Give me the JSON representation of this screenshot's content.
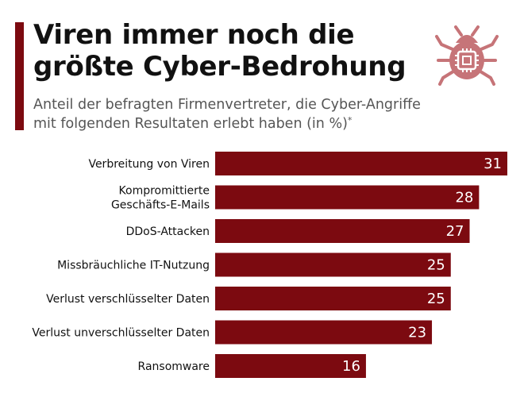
{
  "header": {
    "title_line1": "Viren immer noch die",
    "title_line2": "größte Cyber-Bedrohung",
    "subtitle_line1": "Anteil der befragten Firmenvertreter, die Cyber-Angriffe",
    "subtitle_line2": "mit folgenden Resultaten erlebt haben (in %)",
    "subtitle_mark": "*",
    "icon": "bug-chip-icon"
  },
  "colors": {
    "bar": "#7c0a10",
    "accent": "#7c0a10",
    "icon": "#c67478"
  },
  "chart_data": {
    "type": "bar",
    "orientation": "horizontal",
    "categories": [
      [
        "Verbreitung von Viren"
      ],
      [
        "Kompromittierte",
        "Geschäfts-E-Mails"
      ],
      [
        "DDoS-Attacken"
      ],
      [
        "Missbräuchliche IT-Nutzung"
      ],
      [
        "Verlust verschlüsselter Daten"
      ],
      [
        "Verlust unverschlüsselter Daten"
      ],
      [
        "Ransomware"
      ]
    ],
    "values": [
      31,
      28,
      27,
      25,
      25,
      23,
      16
    ],
    "xlim": [
      0,
      31
    ],
    "grid": false,
    "data_labels": true
  }
}
